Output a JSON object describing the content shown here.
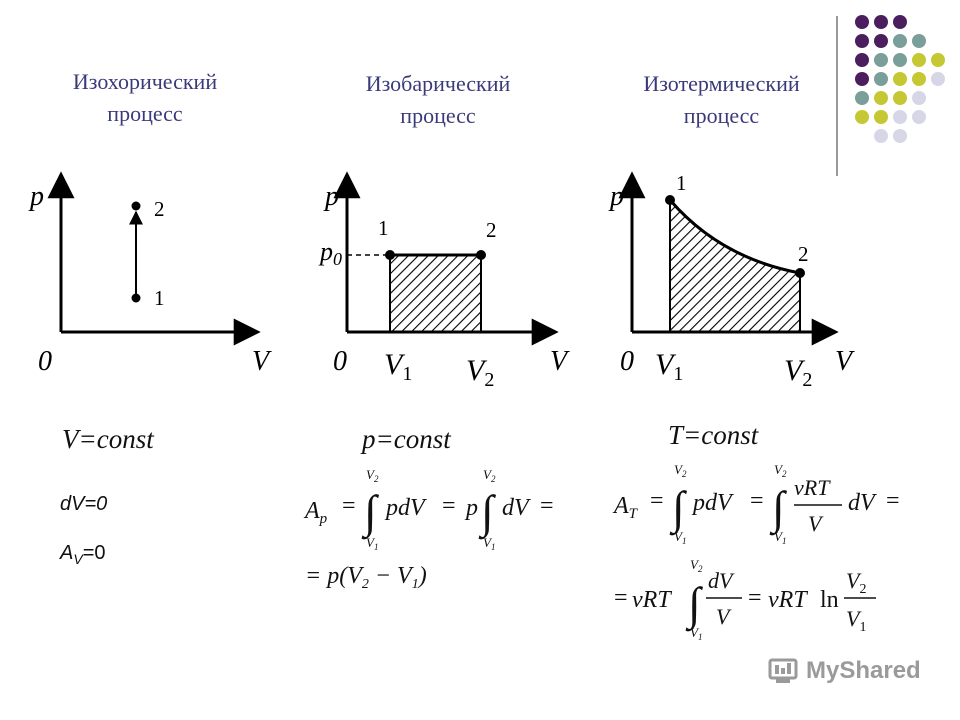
{
  "decor": {
    "dots": [
      [
        "#4b1f5e",
        "#4b1f5e",
        "#4b1f5e",
        null,
        null
      ],
      [
        "#4b1f5e",
        "#4b1f5e",
        "#7a9e9a",
        "#7a9e9a",
        null
      ],
      [
        "#4b1f5e",
        "#7a9e9a",
        "#7a9e9a",
        "#c5c832",
        "#c5c832"
      ],
      [
        "#4b1f5e",
        "#7a9e9a",
        "#c5c832",
        "#c5c832",
        "#d6d6e6"
      ],
      [
        "#7a9e9a",
        "#c5c832",
        "#c5c832",
        "#d6d6e6",
        null
      ],
      [
        "#c5c832",
        "#c5c832",
        "#d6d6e6",
        "#d6d6e6",
        null
      ],
      [
        null,
        "#d6d6e6",
        "#d6d6e6",
        null,
        null
      ]
    ]
  },
  "panels": {
    "isochoric": {
      "title_line1": "Изохорический",
      "title_line2": "процесс",
      "p": "p",
      "v": "V",
      "zero": "0",
      "pt1": "1",
      "pt2": "2",
      "condition": "V=const",
      "eq1": "dV=0",
      "eq2_A": "A",
      "eq2_sub": "V",
      "eq2_rest": "=0"
    },
    "isobaric": {
      "title_line1": "Изобарический",
      "title_line2": "процесс",
      "p": "p",
      "v": "V",
      "zero": "0",
      "p0": "p",
      "p0_sub": "0",
      "v1": "V",
      "v1_sub": "1",
      "v2": "V",
      "v2_sub": "2",
      "pt1": "1",
      "pt2": "2",
      "condition": "p=const"
    },
    "isothermal": {
      "title_line1": "Изотермический",
      "title_line2": "процесс",
      "p": "p",
      "v": "V",
      "zero": "0",
      "v1": "V",
      "v1_sub": "1",
      "v2": "V",
      "v2_sub": "2",
      "pt1": "1",
      "pt2": "2",
      "condition": "T=const"
    }
  },
  "formulas": {
    "ap": {
      "A": "A",
      "A_sub": "p",
      "eq": "=",
      "p": "p",
      "dV": "dV",
      "lim_up": "V",
      "lim_up_sub": "2",
      "lim_lo": "V",
      "lim_lo_sub": "1"
    },
    "ap2": {
      "text_pre": "= p(V",
      "sub2": "2",
      "mid": " − V",
      "sub1": "1",
      "post": ")"
    },
    "at": {
      "A": "A",
      "A_sub": "T",
      "eq": "=",
      "p": "p",
      "dV": "dV",
      "num": "νRT",
      "den": "V",
      "lim_up": "V",
      "lim_up_sub": "2",
      "lim_lo": "V",
      "lim_lo_sub": "1"
    },
    "at2": {
      "eq": "=",
      "nuRT": "νRT",
      "num": "dV",
      "den": "V",
      "ln": "ln",
      "num2": "V",
      "num2_sub": "2",
      "den2": "V",
      "den2_sub": "1"
    }
  },
  "watermark": {
    "text": "MyShared"
  }
}
